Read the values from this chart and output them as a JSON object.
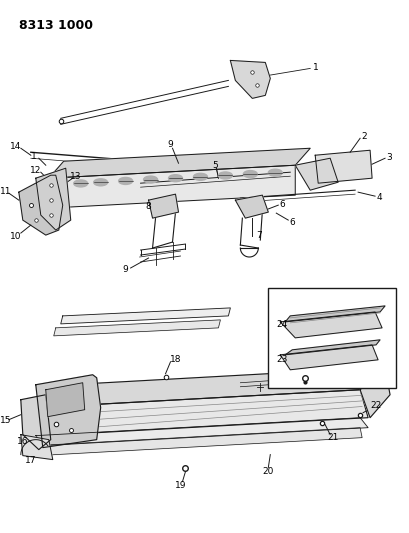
{
  "title": "8313 1000",
  "bg_color": "#ffffff",
  "fig_width": 4.1,
  "fig_height": 5.33,
  "dpi": 100
}
